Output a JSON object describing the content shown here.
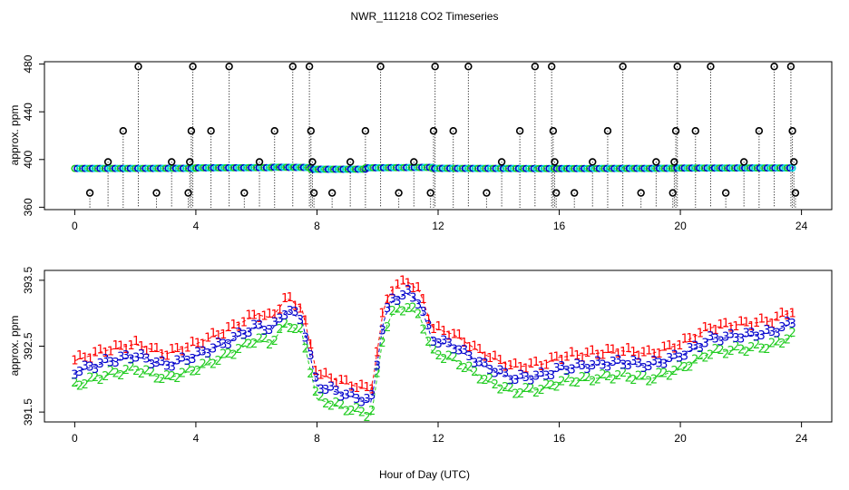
{
  "chart_data": {
    "type": "scatter",
    "title": "NWR_111218  CO2 Timeseries",
    "xlabel": "Hour of Day (UTC)",
    "x_ticks": [
      "0",
      "4",
      "8",
      "12",
      "16",
      "20",
      "24"
    ],
    "colors": {
      "series1": "#ff0000",
      "series2": "#22cc22",
      "series3": "#0000cc",
      "outlier": "#000000",
      "cyan": "#00dddd",
      "line": "#000000"
    },
    "panels": [
      {
        "name": "top",
        "ylabel": "approx. ppm",
        "xlim": [
          -1,
          25
        ],
        "ylim": [
          358,
          482
        ],
        "y_ticks": [
          "360",
          "400",
          "440",
          "480"
        ],
        "baseline": 392.5,
        "baseline_segments": [
          {
            "x": [
              0,
              4.0
            ],
            "y": [
              392.5,
              392.6
            ]
          },
          {
            "x": [
              4.0,
              6.5
            ],
            "y": [
              393.0,
              393.2
            ]
          },
          {
            "x": [
              6.5,
              7.8
            ],
            "y": [
              393.5,
              393.3
            ]
          },
          {
            "x": [
              7.8,
              9.6
            ],
            "y": [
              391.8,
              391.9
            ]
          },
          {
            "x": [
              9.6,
              11.8
            ],
            "y": [
              393.0,
              393.4
            ]
          },
          {
            "x": [
              11.8,
              16
            ],
            "y": [
              392.6,
              392.4
            ]
          },
          {
            "x": [
              16,
              19.8
            ],
            "y": [
              392.4,
              392.6
            ]
          },
          {
            "x": [
              19.8,
              23.7
            ],
            "y": [
              392.8,
              392.9
            ]
          }
        ],
        "outliers": [
          {
            "x": 0.5,
            "y": 372
          },
          {
            "x": 1.1,
            "y": 398
          },
          {
            "x": 1.6,
            "y": 424
          },
          {
            "x": 2.1,
            "y": 478
          },
          {
            "x": 2.7,
            "y": 372
          },
          {
            "x": 3.2,
            "y": 398
          },
          {
            "x": 3.75,
            "y": 372
          },
          {
            "x": 3.8,
            "y": 398
          },
          {
            "x": 3.85,
            "y": 424
          },
          {
            "x": 3.9,
            "y": 478
          },
          {
            "x": 4.5,
            "y": 424
          },
          {
            "x": 5.1,
            "y": 478
          },
          {
            "x": 5.6,
            "y": 372
          },
          {
            "x": 6.1,
            "y": 398
          },
          {
            "x": 6.6,
            "y": 424
          },
          {
            "x": 7.2,
            "y": 478
          },
          {
            "x": 7.75,
            "y": 478
          },
          {
            "x": 7.8,
            "y": 424
          },
          {
            "x": 7.85,
            "y": 398
          },
          {
            "x": 7.9,
            "y": 372
          },
          {
            "x": 8.5,
            "y": 372
          },
          {
            "x": 9.1,
            "y": 398
          },
          {
            "x": 9.6,
            "y": 424
          },
          {
            "x": 10.1,
            "y": 478
          },
          {
            "x": 10.7,
            "y": 372
          },
          {
            "x": 11.2,
            "y": 398
          },
          {
            "x": 11.75,
            "y": 372
          },
          {
            "x": 11.85,
            "y": 424
          },
          {
            "x": 11.9,
            "y": 478
          },
          {
            "x": 12.5,
            "y": 424
          },
          {
            "x": 13.0,
            "y": 478
          },
          {
            "x": 13.6,
            "y": 372
          },
          {
            "x": 14.1,
            "y": 398
          },
          {
            "x": 14.7,
            "y": 424
          },
          {
            "x": 15.2,
            "y": 478
          },
          {
            "x": 15.75,
            "y": 478
          },
          {
            "x": 15.8,
            "y": 424
          },
          {
            "x": 15.85,
            "y": 398
          },
          {
            "x": 15.9,
            "y": 372
          },
          {
            "x": 16.5,
            "y": 372
          },
          {
            "x": 17.1,
            "y": 398
          },
          {
            "x": 17.6,
            "y": 424
          },
          {
            "x": 18.1,
            "y": 478
          },
          {
            "x": 18.7,
            "y": 372
          },
          {
            "x": 19.2,
            "y": 398
          },
          {
            "x": 19.75,
            "y": 372
          },
          {
            "x": 19.8,
            "y": 398
          },
          {
            "x": 19.85,
            "y": 424
          },
          {
            "x": 19.9,
            "y": 478
          },
          {
            "x": 20.5,
            "y": 424
          },
          {
            "x": 21.0,
            "y": 478
          },
          {
            "x": 21.5,
            "y": 372
          },
          {
            "x": 22.1,
            "y": 398
          },
          {
            "x": 22.6,
            "y": 424
          },
          {
            "x": 23.1,
            "y": 478
          },
          {
            "x": 23.65,
            "y": 478
          },
          {
            "x": 23.7,
            "y": 424
          },
          {
            "x": 23.75,
            "y": 398
          },
          {
            "x": 23.8,
            "y": 372
          }
        ]
      },
      {
        "name": "bottom",
        "ylabel": "approx. ppm",
        "xlim": [
          -1,
          25
        ],
        "ylim": [
          391.35,
          393.65
        ],
        "y_ticks": [
          "391.5",
          "392.5",
          "393.5"
        ],
        "y_tick_values": [
          391.5,
          392.5,
          393.5
        ],
        "series": [
          {
            "name": "1",
            "offset": 0.18,
            "color": "#ff0000"
          },
          {
            "name": "2",
            "offset": -0.2,
            "color": "#22cc22"
          },
          {
            "name": "3",
            "offset": 0.0,
            "color": "#0000cc"
          }
        ],
        "trend": [
          [
            0,
            392.1
          ],
          [
            1,
            392.25
          ],
          [
            2,
            392.35
          ],
          [
            3,
            392.2
          ],
          [
            4,
            392.35
          ],
          [
            5,
            392.55
          ],
          [
            6,
            392.8
          ],
          [
            6.5,
            392.75
          ],
          [
            7.0,
            393.05
          ],
          [
            7.5,
            392.9
          ],
          [
            8.0,
            391.9
          ],
          [
            9.0,
            391.75
          ],
          [
            9.8,
            391.65
          ],
          [
            10.2,
            392.9
          ],
          [
            10.5,
            393.2
          ],
          [
            11.0,
            393.3
          ],
          [
            11.4,
            393.15
          ],
          [
            11.8,
            392.6
          ],
          [
            12.5,
            392.5
          ],
          [
            13.5,
            392.2
          ],
          [
            14.5,
            392.0
          ],
          [
            15.5,
            392.05
          ],
          [
            16,
            392.15
          ],
          [
            17,
            392.2
          ],
          [
            18,
            392.25
          ],
          [
            19,
            392.2
          ],
          [
            20,
            392.35
          ],
          [
            21,
            392.6
          ],
          [
            22,
            392.65
          ],
          [
            23,
            392.7
          ],
          [
            23.7,
            392.85
          ]
        ]
      }
    ]
  }
}
